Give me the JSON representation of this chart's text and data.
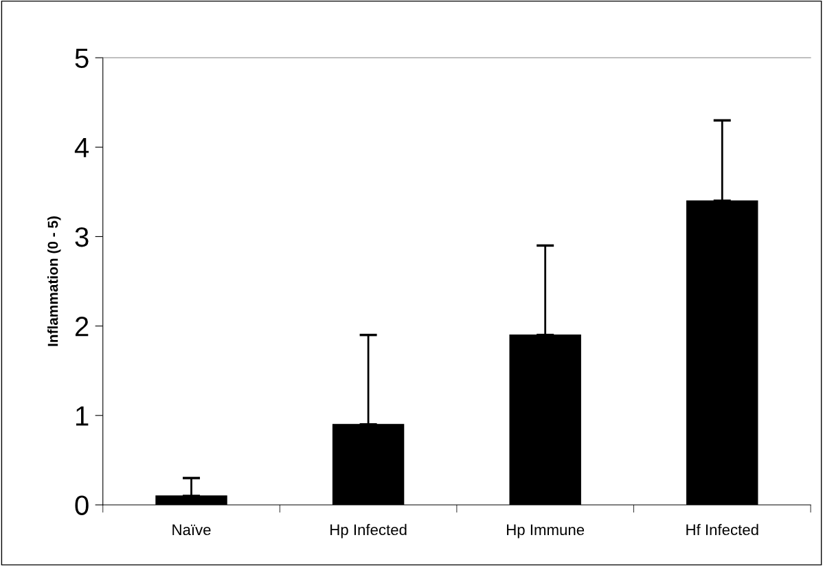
{
  "chart_data": {
    "type": "bar",
    "ylabel": "Inflammation (0 - 5)",
    "categories": [
      "Naïve",
      "Hp Infected",
      "Hp Immune",
      "Hf Infected"
    ],
    "values": [
      0.1,
      0.9,
      1.9,
      3.4
    ],
    "errors": [
      [
        0.1,
        0.3
      ],
      [
        0.9,
        1.9
      ],
      [
        1.9,
        2.9
      ],
      [
        3.4,
        4.3
      ]
    ],
    "color": "#000000",
    "ylim": [
      0,
      5
    ],
    "yticks": [
      0,
      1,
      2,
      3,
      4,
      5
    ],
    "grid": false,
    "legend": false
  }
}
